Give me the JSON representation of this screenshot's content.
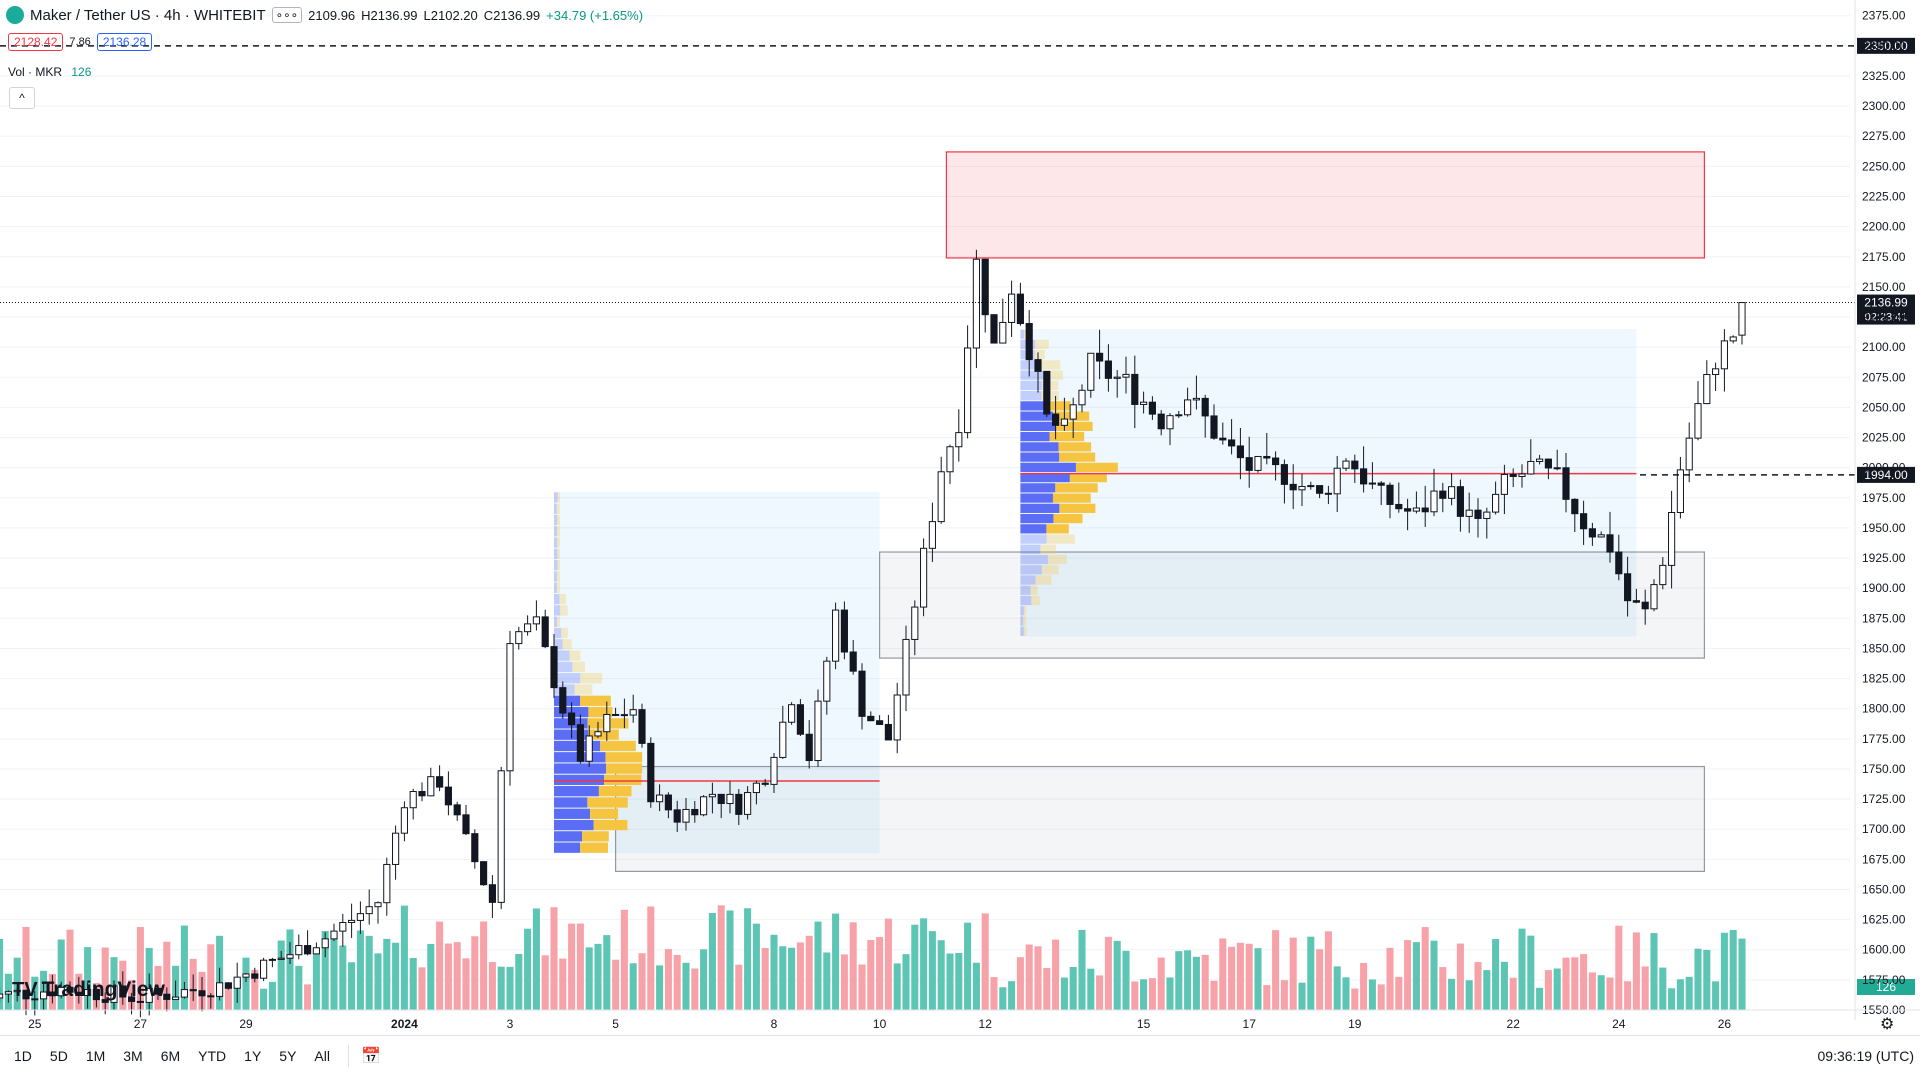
{
  "header": {
    "symbol": "Maker / Tether US · 4h · WHITEBIT",
    "open": "2109.96",
    "high": "H2136.99",
    "low": "L2102.20",
    "close": "C2136.99",
    "change": "+34.79 (+1.65%)",
    "more_label": "∘∘∘"
  },
  "quote": {
    "bid": "2128.42",
    "spread": "7.86",
    "ask": "2136.28"
  },
  "volume_legend": {
    "label": "Vol · MKR",
    "value": "126"
  },
  "collapse_label": "^",
  "brand": "TradingView",
  "bottom_bar": {
    "timeframes": [
      "1D",
      "5D",
      "1M",
      "3M",
      "6M",
      "YTD",
      "1Y",
      "5Y",
      "All"
    ],
    "clock": "09:36:19 (UTC)"
  },
  "colors": {
    "up": "#089981",
    "down": "#f23645",
    "vol_up": "#5dc5b3",
    "vol_down": "#f7a1a8",
    "zone_red": "#f23645",
    "zone_gray": "#9598a1",
    "vp_up": "#5b6cf5",
    "vp_down": "#f5c542"
  },
  "chart_data": {
    "type": "candlestick",
    "symbol": "Maker / Tether US",
    "interval": "4h",
    "exchange": "WHITEBIT",
    "ylim": [
      1550,
      2375
    ],
    "y_ticks": [
      1550,
      1575,
      1600,
      1625,
      1650,
      1675,
      1700,
      1725,
      1750,
      1775,
      1800,
      1825,
      1850,
      1875,
      1900,
      1925,
      1950,
      1975,
      2000,
      2025,
      2050,
      2075,
      2100,
      2125,
      2150,
      2175,
      2200,
      2225,
      2250,
      2275,
      2300,
      2325,
      2350,
      2375
    ],
    "x_ticks": [
      "25",
      "27",
      "29",
      "2024",
      "3",
      "5",
      "8",
      "10",
      "12",
      "15",
      "17",
      "19",
      "22",
      "24",
      "26"
    ],
    "price_tags": [
      {
        "label": "2350.00",
        "value": 2350
      },
      {
        "label": "1994.00",
        "value": 1994
      },
      {
        "label": "2136.99",
        "value": 2136.99
      }
    ],
    "countdown": "02:23:41",
    "volume_tag": "126",
    "zones": [
      {
        "name": "resistance",
        "from": 2174,
        "to": 2262,
        "start": "Jan 11",
        "end": "Jan 26"
      },
      {
        "name": "support-upper",
        "from": 1842,
        "to": 1930,
        "start": "Jan 10",
        "end": "Jan 26"
      },
      {
        "name": "support-lower",
        "from": 1665,
        "to": 1752,
        "start": "Jan 5",
        "end": "Jan 26"
      }
    ],
    "waypoints": [
      [
        "Dec 24 00:00",
        1560
      ],
      [
        "Dec 25 12:00",
        1568
      ],
      [
        "Dec 27 00:00",
        1560
      ],
      [
        "Dec 28 12:00",
        1570
      ],
      [
        "Dec 29 12:00",
        1590
      ],
      [
        "Dec 30 12:00",
        1610
      ],
      [
        "Dec 31 12:00",
        1640
      ],
      [
        "Jan 1 00:00",
        1725
      ],
      [
        "Jan 1 16:00",
        1740
      ],
      [
        "Jan 2 04:00",
        1690
      ],
      [
        "Jan 2 16:00",
        1640
      ],
      [
        "Jan 3 00:00",
        1860
      ],
      [
        "Jan 3 12:00",
        1870
      ],
      [
        "Jan 4 00:00",
        1800
      ],
      [
        "Jan 4 08:00",
        1760
      ],
      [
        "Jan 4 20:00",
        1790
      ],
      [
        "Jan 5 08:00",
        1800
      ],
      [
        "Jan 5 16:00",
        1730
      ],
      [
        "Jan 6 04:00",
        1710
      ],
      [
        "Jan 6 20:00",
        1730
      ],
      [
        "Jan 7 08:00",
        1720
      ],
      [
        "Jan 7 20:00",
        1745
      ],
      [
        "Jan 8 08:00",
        1810
      ],
      [
        "Jan 8 16:00",
        1760
      ],
      [
        "Jan 9 04:00",
        1880
      ],
      [
        "Jan 9 16:00",
        1800
      ],
      [
        "Jan 10 04:00",
        1775
      ],
      [
        "Jan 10 12:00",
        1850
      ],
      [
        "Jan 10 20:00",
        1925
      ],
      [
        "Jan 11 04:00",
        2000
      ],
      [
        "Jan 11 12:00",
        2040
      ],
      [
        "Jan 11 20:00",
        2170
      ],
      [
        "Jan 12 04:00",
        2100
      ],
      [
        "Jan 12 12:00",
        2150
      ],
      [
        "Jan 12 20:00",
        2100
      ],
      [
        "Jan 13 04:00",
        2040
      ],
      [
        "Jan 13 12:00",
        2030
      ],
      [
        "Jan 14 00:00",
        2085
      ],
      [
        "Jan 14 16:00",
        2070
      ],
      [
        "Jan 15 08:00",
        2040
      ],
      [
        "Jan 15 20:00",
        2060
      ],
      [
        "Jan 16 12:00",
        2020
      ],
      [
        "Jan 17 00:00",
        2000
      ],
      [
        "Jan 17 16:00",
        1995
      ],
      [
        "Jan 18 08:00",
        1975
      ],
      [
        "Jan 18 20:00",
        2010
      ],
      [
        "Jan 19 12:00",
        1975
      ],
      [
        "Jan 20 04:00",
        1960
      ],
      [
        "Jan 20 16:00",
        1985
      ],
      [
        "Jan 21 08:00",
        1950
      ],
      [
        "Jan 21 20:00",
        1985
      ],
      [
        "Jan 22 08:00",
        2000
      ],
      [
        "Jan 22 20:00",
        1990
      ],
      [
        "Jan 23 08:00",
        1955
      ],
      [
        "Jan 23 20:00",
        1935
      ],
      [
        "Jan 24 04:00",
        1890
      ],
      [
        "Jan 24 12:00",
        1880
      ],
      [
        "Jan 24 20:00",
        1925
      ],
      [
        "Jan 25 04:00",
        2000
      ],
      [
        "Jan 25 12:00",
        2050
      ],
      [
        "Jan 25 20:00",
        2090
      ],
      [
        "Jan 26 04:00",
        2110
      ],
      [
        "Jan 26 08:00",
        2137
      ]
    ]
  }
}
